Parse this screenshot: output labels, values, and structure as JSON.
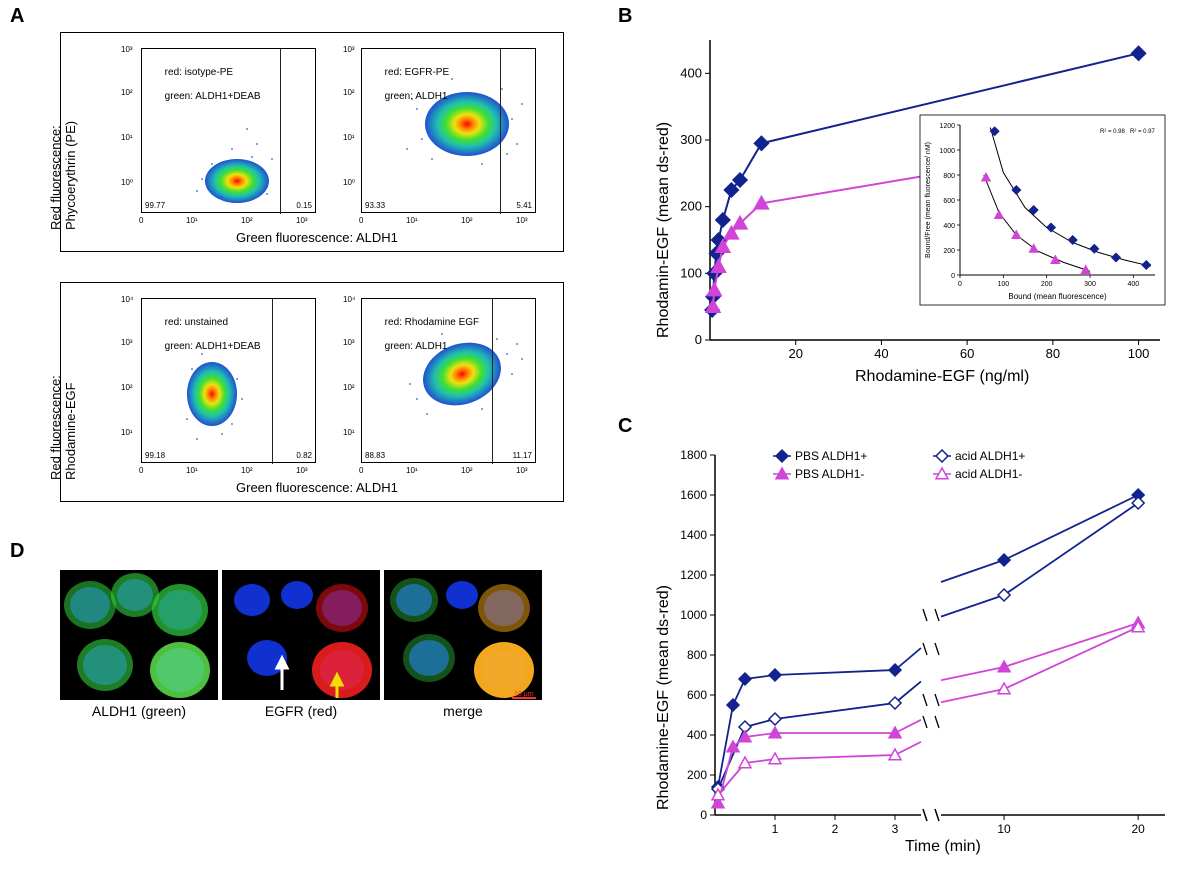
{
  "labels": {
    "A": "A",
    "B": "B",
    "C": "C",
    "D": "D"
  },
  "panelA": {
    "y_label_top": "Red fluorescence:\nPhycoerythrin (PE)",
    "y_label_bottom": "Red fluorescence:\nRhodamine-EGF",
    "x_label": "Green fluorescence: ALDH1",
    "plots": {
      "top_left": {
        "line1": "red: isotype-PE",
        "line2": "green: ALDH1+DEAB",
        "gate_left": "99.77",
        "gate_right": "0.15"
      },
      "top_right": {
        "line1": "red: EGFR-PE",
        "line2": "green: ALDH1",
        "gate_left": "93.33",
        "gate_right": "5.41"
      },
      "bot_left": {
        "line1": "red: unstained",
        "line2": "green: ALDH1+DEAB",
        "gate_left": "99.18",
        "gate_right": "0.82"
      },
      "bot_right": {
        "line1": "red: Rhodamine EGF",
        "line2": "green: ALDH1",
        "gate_left": "88.83",
        "gate_right": "11.17"
      }
    },
    "ticks": [
      "0",
      "10¹",
      "10²",
      "10³"
    ]
  },
  "panelB": {
    "ylabel": "Rhodamin-EGF (mean ds-red)",
    "xlabel": "Rhodamine-EGF (ng/ml)",
    "ylim": [
      0,
      450
    ],
    "xlim": [
      0,
      105
    ],
    "yticks": [
      0,
      100,
      200,
      300,
      400
    ],
    "xticks": [
      20,
      40,
      60,
      80,
      100
    ],
    "series": [
      {
        "name": "ALDH1+",
        "color": "#12228e",
        "marker": "diamond",
        "fill": true,
        "points": [
          [
            0.5,
            45
          ],
          [
            0.7,
            65
          ],
          [
            1,
            100
          ],
          [
            1.5,
            130
          ],
          [
            2,
            150
          ],
          [
            3,
            180
          ],
          [
            5,
            225
          ],
          [
            7,
            240
          ],
          [
            12,
            295
          ],
          [
            100,
            430
          ]
        ]
      },
      {
        "name": "ALDH1-",
        "color": "#d045d8",
        "marker": "triangle",
        "fill": true,
        "points": [
          [
            0.7,
            50
          ],
          [
            1,
            75
          ],
          [
            2,
            110
          ],
          [
            3,
            140
          ],
          [
            5,
            160
          ],
          [
            7,
            175
          ],
          [
            12,
            205
          ],
          [
            100,
            300
          ]
        ]
      }
    ],
    "inset": {
      "xlabel": "Bound (mean fluorescence)",
      "ylabel": "Bound/Free (mean fluorescence/ nM)",
      "r2_a": "R² = 0.98",
      "r2_b": "R² = 0.97",
      "xlim": [
        0,
        450
      ],
      "ylim": [
        0,
        1200
      ],
      "xticks": [
        0,
        100,
        200,
        300,
        400
      ],
      "yticks": [
        0,
        200,
        400,
        600,
        800,
        1000,
        1200
      ],
      "series": [
        {
          "color": "#12228e",
          "marker": "diamond",
          "points": [
            [
              80,
              1150
            ],
            [
              130,
              680
            ],
            [
              170,
              520
            ],
            [
              210,
              380
            ],
            [
              260,
              280
            ],
            [
              310,
              210
            ],
            [
              360,
              140
            ],
            [
              430,
              80
            ]
          ]
        },
        {
          "color": "#d045d8",
          "marker": "triangle",
          "points": [
            [
              60,
              780
            ],
            [
              90,
              480
            ],
            [
              130,
              320
            ],
            [
              170,
              210
            ],
            [
              220,
              120
            ],
            [
              290,
              40
            ]
          ]
        }
      ],
      "curves": [
        [
          [
            70,
            1180
          ],
          [
            100,
            820
          ],
          [
            150,
            540
          ],
          [
            200,
            380
          ],
          [
            260,
            260
          ],
          [
            320,
            180
          ],
          [
            380,
            120
          ],
          [
            440,
            70
          ]
        ],
        [
          [
            55,
            800
          ],
          [
            90,
            500
          ],
          [
            130,
            320
          ],
          [
            180,
            190
          ],
          [
            240,
            100
          ],
          [
            300,
            30
          ]
        ]
      ]
    }
  },
  "panelC": {
    "ylabel": "Rhodamine-EGF (mean ds-red)",
    "xlabel": "Time (min)",
    "ylim": [
      0,
      1800
    ],
    "yticks": [
      0,
      200,
      400,
      600,
      800,
      1000,
      1200,
      1400,
      1600,
      1800
    ],
    "x_segments": {
      "seg1": {
        "range": [
          0,
          3.5
        ],
        "ticks": [
          1,
          2,
          3
        ]
      },
      "seg2": {
        "range": [
          5,
          22
        ],
        "ticks": [
          10,
          20
        ]
      }
    },
    "legend": [
      {
        "key": "PBS ALDH1+",
        "color": "#12228e",
        "marker": "diamond",
        "fill": true
      },
      {
        "key": "acid ALDH1+",
        "color": "#12228e",
        "marker": "diamond",
        "fill": false
      },
      {
        "key": "PBS ALDH1-",
        "color": "#d045d8",
        "marker": "triangle",
        "fill": true
      },
      {
        "key": "acid ALDH1-",
        "color": "#d045d8",
        "marker": "triangle",
        "fill": false
      }
    ],
    "series": [
      {
        "key": "PBS ALDH1+",
        "seg1": [
          [
            0.05,
            140
          ],
          [
            0.3,
            550
          ],
          [
            0.5,
            680
          ],
          [
            1,
            700
          ],
          [
            3,
            725
          ]
        ],
        "seg2": [
          [
            10,
            1275
          ],
          [
            20,
            1600
          ]
        ]
      },
      {
        "key": "acid ALDH1+",
        "seg1": [
          [
            0.05,
            130
          ],
          [
            0.5,
            440
          ],
          [
            1,
            480
          ],
          [
            3,
            560
          ]
        ],
        "seg2": [
          [
            10,
            1100
          ],
          [
            20,
            1560
          ]
        ]
      },
      {
        "key": "PBS ALDH1-",
        "seg1": [
          [
            0.05,
            60
          ],
          [
            0.3,
            340
          ],
          [
            0.5,
            390
          ],
          [
            1,
            410
          ],
          [
            3,
            410
          ]
        ],
        "seg2": [
          [
            10,
            740
          ],
          [
            20,
            960
          ]
        ]
      },
      {
        "key": "acid ALDH1-",
        "seg1": [
          [
            0.05,
            100
          ],
          [
            0.5,
            260
          ],
          [
            1,
            280
          ],
          [
            3,
            300
          ]
        ],
        "seg2": [
          [
            10,
            630
          ],
          [
            20,
            940
          ]
        ]
      }
    ]
  },
  "panelD": {
    "labels": [
      "ALDH1 (green)",
      "EGFR (red)",
      "merge"
    ],
    "scale_bar": "10 µm"
  },
  "colors": {
    "blue": "#12228e",
    "magenta": "#d045d8",
    "black": "#000000",
    "density_gradient": [
      "#0a1a8a",
      "#2060d0",
      "#20c0b0",
      "#40e030",
      "#f0e010",
      "#ff8000",
      "#ff0000"
    ]
  }
}
